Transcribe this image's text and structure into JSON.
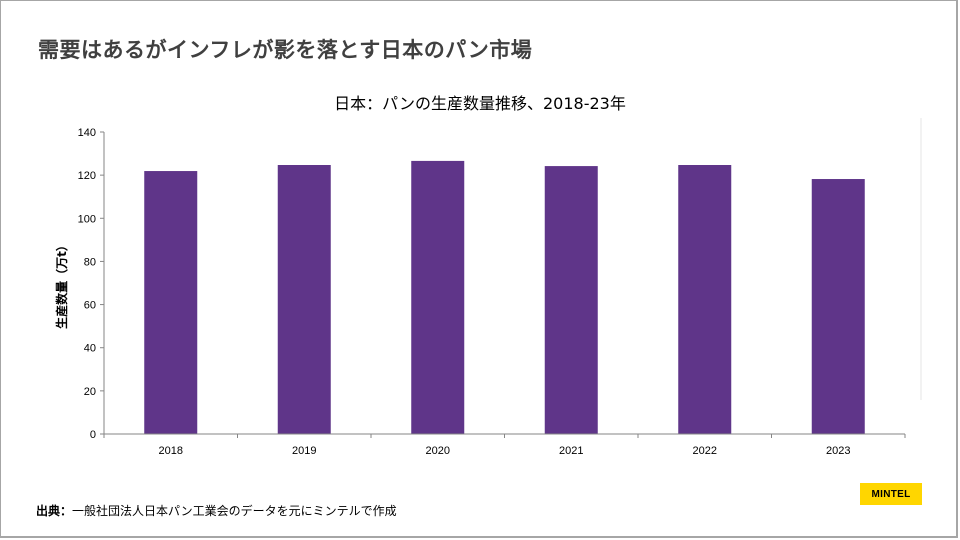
{
  "slide": {
    "title": "需要はあるがインフレが影を落とす日本のパン市場",
    "source_label": "出典：",
    "source_text": "一般社団法人日本パン工業会のデータを元にミンテルで作成",
    "logo": "MINTEL"
  },
  "chart_data": {
    "type": "bar",
    "title": "日本：パンの生産数量推移、2018-23年",
    "xlabel": "",
    "ylabel": "生産数量（万t）",
    "categories": [
      "2018",
      "2019",
      "2020",
      "2021",
      "2022",
      "2023"
    ],
    "values": [
      121.9,
      124.7,
      126.6,
      124.2,
      124.7,
      118.2
    ],
    "ylim": [
      0,
      140
    ],
    "yticks": [
      0,
      20,
      40,
      60,
      80,
      100,
      120,
      140
    ],
    "grid": false,
    "legend": "none",
    "bar_color": "#5f3589"
  }
}
